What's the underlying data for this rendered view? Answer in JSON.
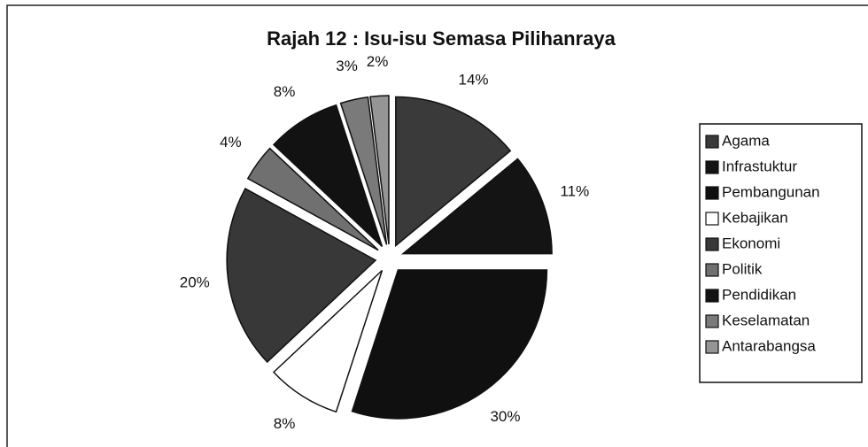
{
  "chart_data": {
    "type": "pie",
    "title": "Rajah 12 : Isu-isu Semasa Pilihanraya",
    "categories": [
      "Agama",
      "Infrastuktur",
      "Pembangunan",
      "Kebajikan",
      "Ekonomi",
      "Politik",
      "Pendidikan",
      "Keselamatan",
      "Antarabangsa"
    ],
    "values": [
      14,
      11,
      30,
      8,
      20,
      4,
      8,
      3,
      2
    ],
    "value_labels": [
      "14%",
      "11%",
      "30%",
      "8%",
      "20%",
      "4%",
      "8%",
      "3%",
      "2%"
    ],
    "colors": [
      "#3a3a3a",
      "#141414",
      "#101010",
      "#ffffff",
      "#383838",
      "#707070",
      "#121212",
      "#7a7a7a",
      "#959595"
    ],
    "legend": "right"
  }
}
